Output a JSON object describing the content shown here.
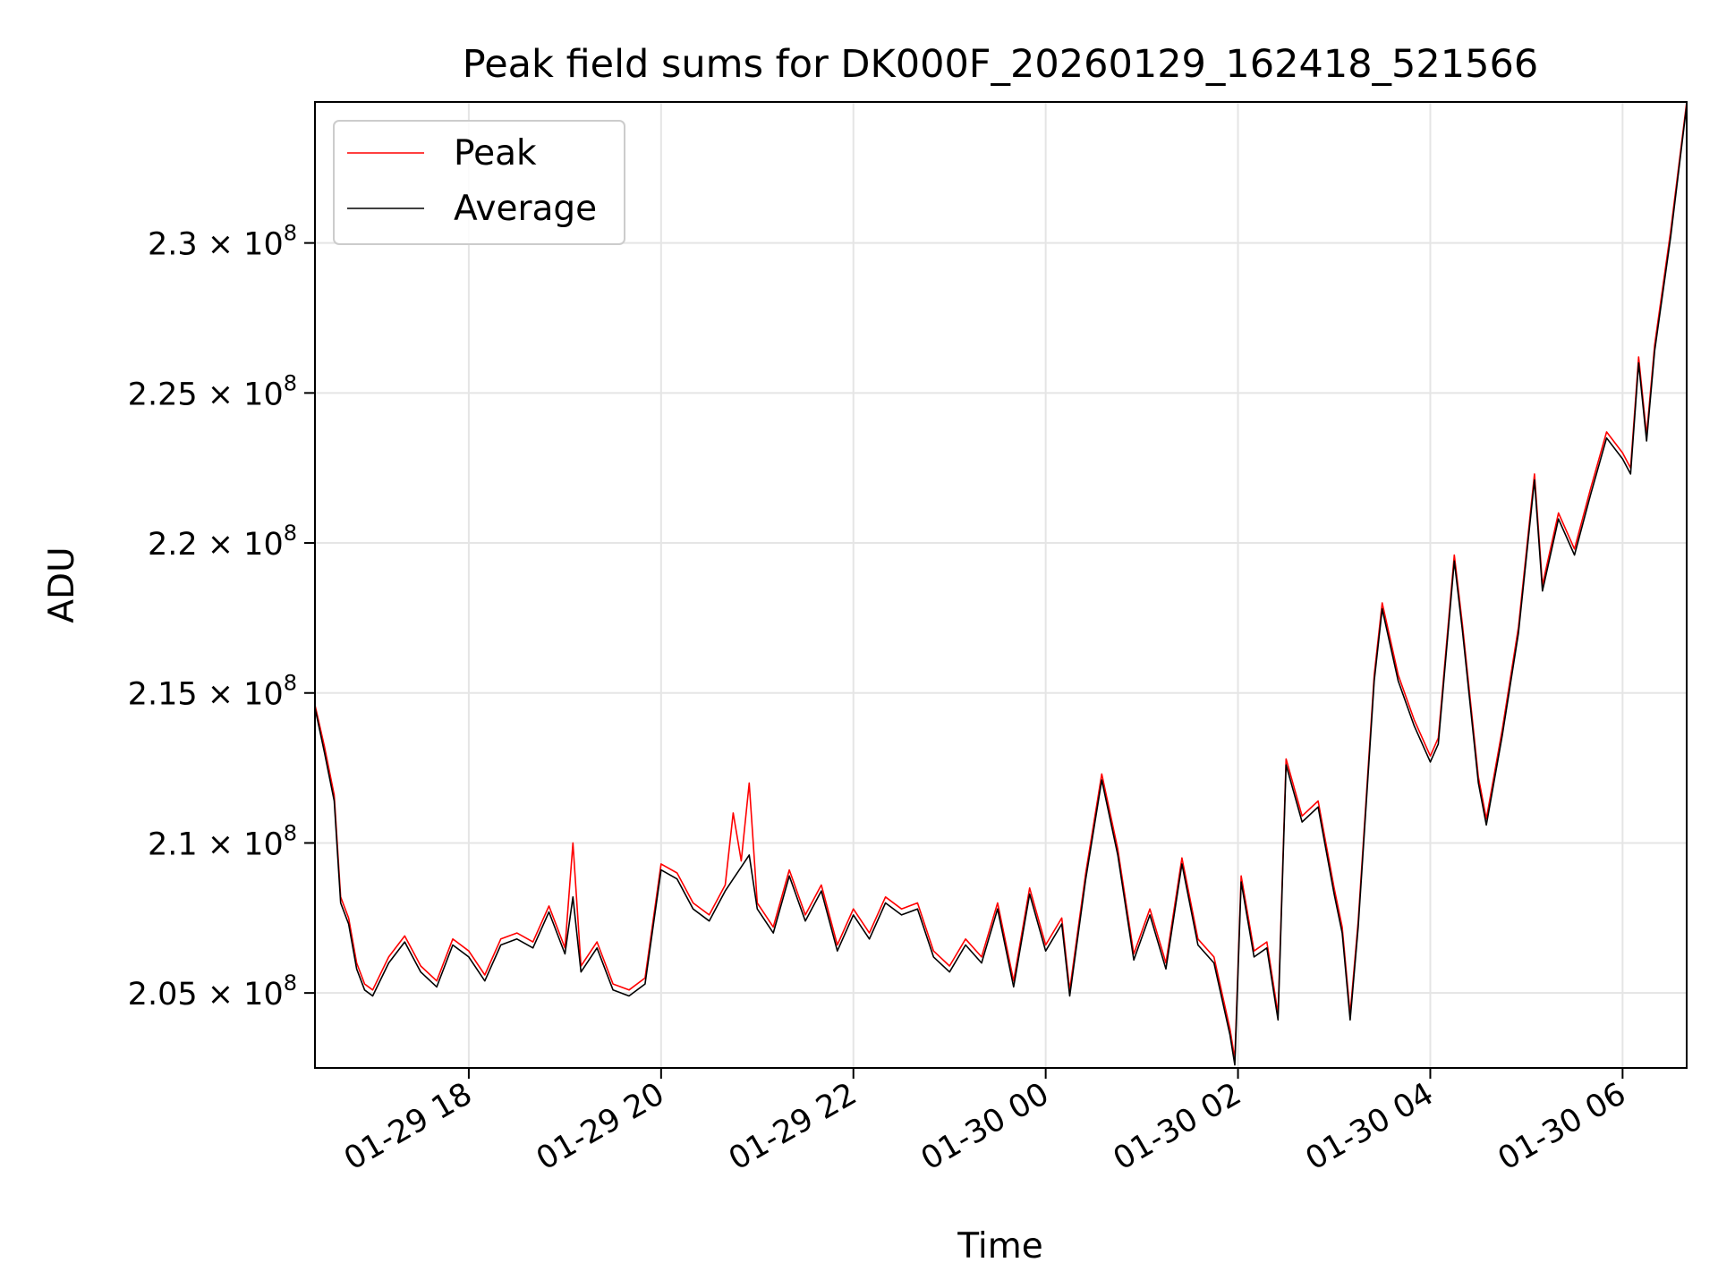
{
  "chart_data": {
    "type": "line",
    "title": "Peak field sums for DK000F_20260129_162418_521566",
    "xlabel": "Time",
    "ylabel": "ADU",
    "x_ticks": [
      "01-29 18",
      "01-29 20",
      "01-29 22",
      "01-30 00",
      "01-30 02",
      "01-30 04",
      "01-30 06"
    ],
    "y_ticks": [
      {
        "value": 205000000,
        "mantissa": "2.05",
        "exponent": "8"
      },
      {
        "value": 210000000,
        "mantissa": "2.1",
        "exponent": "8"
      },
      {
        "value": 215000000,
        "mantissa": "2.15",
        "exponent": "8"
      },
      {
        "value": 220000000,
        "mantissa": "2.2",
        "exponent": "8"
      },
      {
        "value": 225000000,
        "mantissa": "2.25",
        "exponent": "8"
      },
      {
        "value": 230000000,
        "mantissa": "2.3",
        "exponent": "8"
      }
    ],
    "xlim": [
      "2026-01-29 16:24",
      "2026-01-30 06:40"
    ],
    "ylim": [
      202500000,
      234700000
    ],
    "grid": true,
    "legend_position": "upper-left",
    "series": [
      {
        "name": "Peak",
        "color": "#ff0000",
        "points": [
          [
            "2026-01-29 16:24",
            214600000
          ],
          [
            "2026-01-29 16:30",
            213200000
          ],
          [
            "2026-01-29 16:36",
            211600000
          ],
          [
            "2026-01-29 16:40",
            208200000
          ],
          [
            "2026-01-29 16:45",
            207500000
          ],
          [
            "2026-01-29 16:50",
            206000000
          ],
          [
            "2026-01-29 16:55",
            205300000
          ],
          [
            "2026-01-29 17:00",
            205100000
          ],
          [
            "2026-01-29 17:10",
            206200000
          ],
          [
            "2026-01-29 17:20",
            206900000
          ],
          [
            "2026-01-29 17:30",
            205900000
          ],
          [
            "2026-01-29 17:40",
            205400000
          ],
          [
            "2026-01-29 17:50",
            206800000
          ],
          [
            "2026-01-29 18:00",
            206400000
          ],
          [
            "2026-01-29 18:10",
            205600000
          ],
          [
            "2026-01-29 18:20",
            206800000
          ],
          [
            "2026-01-29 18:30",
            207000000
          ],
          [
            "2026-01-29 18:40",
            206700000
          ],
          [
            "2026-01-29 18:50",
            207900000
          ],
          [
            "2026-01-29 19:00",
            206500000
          ],
          [
            "2026-01-29 19:05",
            210000000
          ],
          [
            "2026-01-29 19:10",
            205900000
          ],
          [
            "2026-01-29 19:20",
            206700000
          ],
          [
            "2026-01-29 19:30",
            205300000
          ],
          [
            "2026-01-29 19:40",
            205100000
          ],
          [
            "2026-01-29 19:50",
            205500000
          ],
          [
            "2026-01-29 20:00",
            209300000
          ],
          [
            "2026-01-29 20:10",
            209000000
          ],
          [
            "2026-01-29 20:20",
            208000000
          ],
          [
            "2026-01-29 20:30",
            207600000
          ],
          [
            "2026-01-29 20:40",
            208600000
          ],
          [
            "2026-01-29 20:45",
            211000000
          ],
          [
            "2026-01-29 20:50",
            209400000
          ],
          [
            "2026-01-29 20:55",
            212000000
          ],
          [
            "2026-01-29 21:00",
            208000000
          ],
          [
            "2026-01-29 21:10",
            207200000
          ],
          [
            "2026-01-29 21:20",
            209100000
          ],
          [
            "2026-01-29 21:30",
            207600000
          ],
          [
            "2026-01-29 21:40",
            208600000
          ],
          [
            "2026-01-29 21:50",
            206600000
          ],
          [
            "2026-01-29 22:00",
            207800000
          ],
          [
            "2026-01-29 22:10",
            207000000
          ],
          [
            "2026-01-29 22:20",
            208200000
          ],
          [
            "2026-01-29 22:30",
            207800000
          ],
          [
            "2026-01-29 22:40",
            208000000
          ],
          [
            "2026-01-29 22:50",
            206400000
          ],
          [
            "2026-01-29 23:00",
            205900000
          ],
          [
            "2026-01-29 23:10",
            206800000
          ],
          [
            "2026-01-29 23:20",
            206200000
          ],
          [
            "2026-01-29 23:30",
            208000000
          ],
          [
            "2026-01-29 23:40",
            205400000
          ],
          [
            "2026-01-29 23:50",
            208500000
          ],
          [
            "2026-01-30 00:00",
            206600000
          ],
          [
            "2026-01-30 00:10",
            207500000
          ],
          [
            "2026-01-30 00:15",
            205100000
          ],
          [
            "2026-01-30 00:25",
            209000000
          ],
          [
            "2026-01-30 00:35",
            212300000
          ],
          [
            "2026-01-30 00:45",
            209800000
          ],
          [
            "2026-01-30 00:55",
            206300000
          ],
          [
            "2026-01-30 01:05",
            207800000
          ],
          [
            "2026-01-30 01:15",
            206000000
          ],
          [
            "2026-01-30 01:25",
            209500000
          ],
          [
            "2026-01-30 01:35",
            206800000
          ],
          [
            "2026-01-30 01:45",
            206200000
          ],
          [
            "2026-01-30 01:55",
            203800000
          ],
          [
            "2026-01-30 01:58",
            202800000
          ],
          [
            "2026-01-30 02:02",
            208900000
          ],
          [
            "2026-01-30 02:10",
            206400000
          ],
          [
            "2026-01-30 02:18",
            206700000
          ],
          [
            "2026-01-30 02:25",
            204300000
          ],
          [
            "2026-01-30 02:30",
            212800000
          ],
          [
            "2026-01-30 02:40",
            210900000
          ],
          [
            "2026-01-30 02:50",
            211400000
          ],
          [
            "2026-01-30 03:00",
            208500000
          ],
          [
            "2026-01-30 03:05",
            207200000
          ],
          [
            "2026-01-30 03:10",
            204300000
          ],
          [
            "2026-01-30 03:15",
            207400000
          ],
          [
            "2026-01-30 03:25",
            215600000
          ],
          [
            "2026-01-30 03:30",
            218000000
          ],
          [
            "2026-01-30 03:40",
            215600000
          ],
          [
            "2026-01-30 03:50",
            214100000
          ],
          [
            "2026-01-30 04:00",
            212900000
          ],
          [
            "2026-01-30 04:05",
            213500000
          ],
          [
            "2026-01-30 04:15",
            219600000
          ],
          [
            "2026-01-30 04:20",
            217300000
          ],
          [
            "2026-01-30 04:30",
            212200000
          ],
          [
            "2026-01-30 04:35",
            210800000
          ],
          [
            "2026-01-30 04:45",
            213800000
          ],
          [
            "2026-01-30 04:55",
            217200000
          ],
          [
            "2026-01-30 05:05",
            222300000
          ],
          [
            "2026-01-30 05:10",
            218600000
          ],
          [
            "2026-01-30 05:20",
            221000000
          ],
          [
            "2026-01-30 05:30",
            219800000
          ],
          [
            "2026-01-30 05:40",
            221800000
          ],
          [
            "2026-01-30 05:50",
            223700000
          ],
          [
            "2026-01-30 06:00",
            223000000
          ],
          [
            "2026-01-30 06:05",
            222500000
          ],
          [
            "2026-01-30 06:10",
            226200000
          ],
          [
            "2026-01-30 06:15",
            223600000
          ],
          [
            "2026-01-30 06:20",
            226600000
          ],
          [
            "2026-01-30 06:30",
            230400000
          ],
          [
            "2026-01-30 06:40",
            234700000
          ]
        ]
      },
      {
        "name": "Average",
        "color": "#000000",
        "points": [
          [
            "2026-01-29 16:24",
            214500000
          ],
          [
            "2026-01-29 16:30",
            213000000
          ],
          [
            "2026-01-29 16:36",
            211400000
          ],
          [
            "2026-01-29 16:40",
            208000000
          ],
          [
            "2026-01-29 16:45",
            207300000
          ],
          [
            "2026-01-29 16:50",
            205800000
          ],
          [
            "2026-01-29 16:55",
            205100000
          ],
          [
            "2026-01-29 17:00",
            204900000
          ],
          [
            "2026-01-29 17:10",
            206000000
          ],
          [
            "2026-01-29 17:20",
            206700000
          ],
          [
            "2026-01-29 17:30",
            205700000
          ],
          [
            "2026-01-29 17:40",
            205200000
          ],
          [
            "2026-01-29 17:50",
            206600000
          ],
          [
            "2026-01-29 18:00",
            206200000
          ],
          [
            "2026-01-29 18:10",
            205400000
          ],
          [
            "2026-01-29 18:20",
            206600000
          ],
          [
            "2026-01-29 18:30",
            206800000
          ],
          [
            "2026-01-29 18:40",
            206500000
          ],
          [
            "2026-01-29 18:50",
            207700000
          ],
          [
            "2026-01-29 19:00",
            206300000
          ],
          [
            "2026-01-29 19:05",
            208200000
          ],
          [
            "2026-01-29 19:10",
            205700000
          ],
          [
            "2026-01-29 19:20",
            206500000
          ],
          [
            "2026-01-29 19:30",
            205100000
          ],
          [
            "2026-01-29 19:40",
            204900000
          ],
          [
            "2026-01-29 19:50",
            205300000
          ],
          [
            "2026-01-29 20:00",
            209100000
          ],
          [
            "2026-01-29 20:10",
            208800000
          ],
          [
            "2026-01-29 20:20",
            207800000
          ],
          [
            "2026-01-29 20:30",
            207400000
          ],
          [
            "2026-01-29 20:40",
            208400000
          ],
          [
            "2026-01-29 20:45",
            208800000
          ],
          [
            "2026-01-29 20:50",
            209200000
          ],
          [
            "2026-01-29 20:55",
            209600000
          ],
          [
            "2026-01-29 21:00",
            207800000
          ],
          [
            "2026-01-29 21:10",
            207000000
          ],
          [
            "2026-01-29 21:20",
            208900000
          ],
          [
            "2026-01-29 21:30",
            207400000
          ],
          [
            "2026-01-29 21:40",
            208400000
          ],
          [
            "2026-01-29 21:50",
            206400000
          ],
          [
            "2026-01-29 22:00",
            207600000
          ],
          [
            "2026-01-29 22:10",
            206800000
          ],
          [
            "2026-01-29 22:20",
            208000000
          ],
          [
            "2026-01-29 22:30",
            207600000
          ],
          [
            "2026-01-29 22:40",
            207800000
          ],
          [
            "2026-01-29 22:50",
            206200000
          ],
          [
            "2026-01-29 23:00",
            205700000
          ],
          [
            "2026-01-29 23:10",
            206600000
          ],
          [
            "2026-01-29 23:20",
            206000000
          ],
          [
            "2026-01-29 23:30",
            207800000
          ],
          [
            "2026-01-29 23:40",
            205200000
          ],
          [
            "2026-01-29 23:50",
            208300000
          ],
          [
            "2026-01-30 00:00",
            206400000
          ],
          [
            "2026-01-30 00:10",
            207300000
          ],
          [
            "2026-01-30 00:15",
            204900000
          ],
          [
            "2026-01-30 00:25",
            208800000
          ],
          [
            "2026-01-30 00:35",
            212100000
          ],
          [
            "2026-01-30 00:45",
            209600000
          ],
          [
            "2026-01-30 00:55",
            206100000
          ],
          [
            "2026-01-30 01:05",
            207600000
          ],
          [
            "2026-01-30 01:15",
            205800000
          ],
          [
            "2026-01-30 01:25",
            209300000
          ],
          [
            "2026-01-30 01:35",
            206600000
          ],
          [
            "2026-01-30 01:45",
            206000000
          ],
          [
            "2026-01-30 01:55",
            203600000
          ],
          [
            "2026-01-30 01:58",
            202600000
          ],
          [
            "2026-01-30 02:02",
            208700000
          ],
          [
            "2026-01-30 02:10",
            206200000
          ],
          [
            "2026-01-30 02:18",
            206500000
          ],
          [
            "2026-01-30 02:25",
            204100000
          ],
          [
            "2026-01-30 02:30",
            212600000
          ],
          [
            "2026-01-30 02:40",
            210700000
          ],
          [
            "2026-01-30 02:50",
            211200000
          ],
          [
            "2026-01-30 03:00",
            208300000
          ],
          [
            "2026-01-30 03:05",
            207000000
          ],
          [
            "2026-01-30 03:10",
            204100000
          ],
          [
            "2026-01-30 03:15",
            207200000
          ],
          [
            "2026-01-30 03:25",
            215400000
          ],
          [
            "2026-01-30 03:30",
            217800000
          ],
          [
            "2026-01-30 03:40",
            215400000
          ],
          [
            "2026-01-30 03:50",
            213900000
          ],
          [
            "2026-01-30 04:00",
            212700000
          ],
          [
            "2026-01-30 04:05",
            213300000
          ],
          [
            "2026-01-30 04:15",
            219400000
          ],
          [
            "2026-01-30 04:20",
            217100000
          ],
          [
            "2026-01-30 04:30",
            212000000
          ],
          [
            "2026-01-30 04:35",
            210600000
          ],
          [
            "2026-01-30 04:45",
            213600000
          ],
          [
            "2026-01-30 04:55",
            217000000
          ],
          [
            "2026-01-30 05:05",
            222100000
          ],
          [
            "2026-01-30 05:10",
            218400000
          ],
          [
            "2026-01-30 05:20",
            220800000
          ],
          [
            "2026-01-30 05:30",
            219600000
          ],
          [
            "2026-01-30 05:40",
            221600000
          ],
          [
            "2026-01-30 05:50",
            223500000
          ],
          [
            "2026-01-30 06:00",
            222800000
          ],
          [
            "2026-01-30 06:05",
            222300000
          ],
          [
            "2026-01-30 06:10",
            226000000
          ],
          [
            "2026-01-30 06:15",
            223400000
          ],
          [
            "2026-01-30 06:20",
            226400000
          ],
          [
            "2026-01-30 06:30",
            230200000
          ],
          [
            "2026-01-30 06:40",
            234600000
          ]
        ]
      }
    ]
  }
}
